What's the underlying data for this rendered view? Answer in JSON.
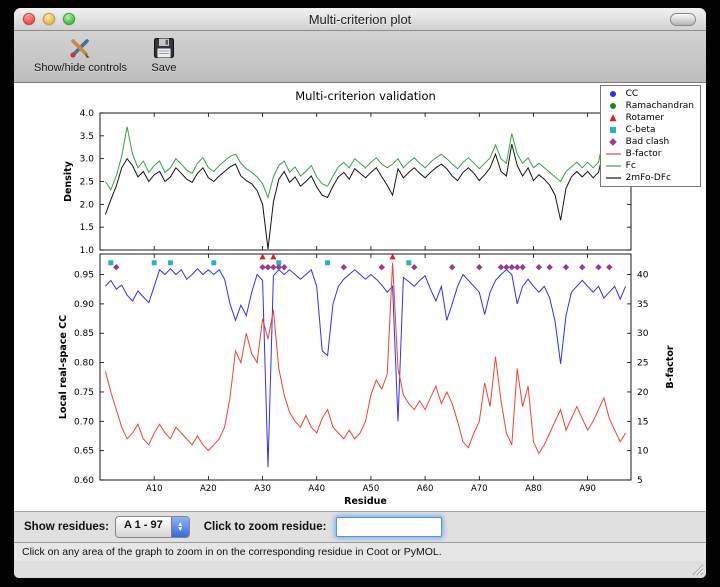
{
  "window": {
    "title": "Multi-criterion plot"
  },
  "toolbar": {
    "items": [
      {
        "label": "Show/hide controls"
      },
      {
        "label": "Save"
      }
    ]
  },
  "controls": {
    "show_residues_label": "Show residues:",
    "residue_range_value": "A  1 - 97",
    "zoom_label": "Click to zoom residue:",
    "zoom_input_value": ""
  },
  "status": {
    "text": "Click on any area of the graph to zoom in on the corresponding residue in Coot or PyMOL."
  },
  "chart_data": {
    "type": "line",
    "title": "Multi-criterion validation",
    "x_range": [
      1,
      97
    ],
    "top": {
      "ylabel": "Density",
      "ylim": [
        1.0,
        4.0
      ],
      "yticks": [
        1.0,
        1.5,
        2.0,
        2.5,
        3.0,
        3.5,
        4.0
      ],
      "series": [
        {
          "name": "Fc",
          "color": "#3aa04a",
          "values": [
            2.5,
            2.32,
            2.62,
            3.05,
            3.7,
            3.1,
            2.8,
            2.95,
            2.7,
            2.85,
            2.95,
            2.7,
            2.8,
            3.0,
            2.88,
            2.75,
            2.68,
            2.9,
            3.02,
            2.8,
            2.72,
            2.85,
            2.95,
            3.05,
            3.1,
            2.9,
            2.78,
            2.7,
            2.6,
            2.45,
            2.15,
            2.6,
            2.85,
            2.95,
            2.7,
            2.82,
            2.62,
            2.72,
            2.85,
            2.6,
            2.45,
            2.4,
            2.62,
            2.82,
            2.92,
            2.8,
            3.0,
            2.9,
            2.8,
            2.92,
            3.02,
            2.88,
            2.8,
            2.88,
            3.0,
            2.8,
            2.92,
            3.02,
            2.9,
            2.8,
            2.92,
            3.02,
            3.1,
            3.0,
            2.88,
            2.78,
            2.92,
            3.02,
            2.9,
            2.78,
            2.9,
            3.02,
            3.3,
            3.0,
            2.9,
            3.55,
            3.1,
            2.9,
            3.02,
            2.8,
            2.9,
            2.8,
            2.7,
            2.6,
            2.5,
            2.72,
            2.82,
            2.92,
            2.8,
            2.92,
            2.8,
            2.92,
            3.5,
            3.02,
            2.9,
            3.05,
            3.2
          ]
        },
        {
          "name": "2mFo-DFc",
          "color": "#141414",
          "values": [
            1.78,
            2.1,
            2.4,
            2.8,
            3.0,
            2.85,
            2.6,
            2.72,
            2.5,
            2.65,
            2.72,
            2.5,
            2.6,
            2.8,
            2.68,
            2.55,
            2.48,
            2.68,
            2.8,
            2.58,
            2.5,
            2.62,
            2.72,
            2.82,
            2.88,
            2.62,
            2.52,
            2.45,
            2.3,
            2.0,
            1.02,
            2.05,
            2.55,
            2.72,
            2.48,
            2.6,
            2.4,
            2.5,
            2.62,
            2.38,
            2.2,
            2.15,
            2.4,
            2.6,
            2.7,
            2.55,
            2.78,
            2.68,
            2.58,
            2.7,
            2.8,
            2.6,
            2.42,
            2.2,
            2.78,
            2.58,
            2.7,
            2.8,
            2.68,
            2.58,
            2.7,
            2.8,
            2.88,
            2.78,
            2.62,
            2.52,
            2.7,
            2.8,
            2.68,
            2.52,
            2.65,
            2.8,
            3.1,
            2.72,
            2.62,
            3.32,
            2.85,
            2.62,
            2.8,
            2.52,
            2.65,
            2.55,
            2.42,
            2.2,
            1.65,
            2.35,
            2.6,
            2.72,
            2.6,
            2.72,
            2.58,
            2.7,
            3.2,
            2.8,
            2.68,
            2.88,
            3.0
          ]
        }
      ]
    },
    "bottom": {
      "xlabel": "Residue",
      "ylabel_left": "Local real-space CC",
      "ylabel_right": "B-factor",
      "ylim_left": [
        0.6,
        0.985
      ],
      "yticks_left": [
        0.6,
        0.65,
        0.7,
        0.75,
        0.8,
        0.85,
        0.9,
        0.95
      ],
      "ylim_right": [
        5,
        43.5
      ],
      "yticks_right": [
        5,
        10,
        15,
        20,
        25,
        30,
        35,
        40
      ],
      "xticks": [
        10,
        20,
        30,
        40,
        50,
        60,
        70,
        80,
        90
      ],
      "xtick_labels": [
        "A10",
        "A20",
        "A30",
        "A40",
        "A50",
        "A60",
        "A70",
        "A80",
        "A90"
      ],
      "series": [
        {
          "name": "CC",
          "axis": "left",
          "color": "#3232e6",
          "values": [
            0.93,
            0.94,
            0.925,
            0.932,
            0.915,
            0.905,
            0.922,
            0.912,
            0.902,
            0.93,
            0.958,
            0.95,
            0.96,
            0.95,
            0.958,
            0.942,
            0.95,
            0.96,
            0.95,
            0.958,
            0.95,
            0.958,
            0.942,
            0.9,
            0.872,
            0.898,
            0.88,
            0.92,
            0.95,
            0.94,
            0.622,
            0.948,
            0.958,
            0.95,
            0.958,
            0.95,
            0.942,
            0.95,
            0.958,
            0.93,
            0.82,
            0.812,
            0.9,
            0.93,
            0.942,
            0.95,
            0.958,
            0.95,
            0.942,
            0.95,
            0.942,
            0.932,
            0.92,
            0.93,
            0.7,
            0.945,
            0.938,
            0.93,
            0.94,
            0.948,
            0.925,
            0.905,
            0.93,
            0.872,
            0.9,
            0.93,
            0.95,
            0.94,
            0.93,
            0.92,
            0.882,
            0.92,
            0.94,
            0.95,
            0.958,
            0.95,
            0.9,
            0.93,
            0.942,
            0.93,
            0.92,
            0.93,
            0.91,
            0.87,
            0.798,
            0.88,
            0.92,
            0.93,
            0.94,
            0.93,
            0.92,
            0.93,
            0.91,
            0.92,
            0.93,
            0.908,
            0.93
          ]
        },
        {
          "name": "B-factor",
          "axis": "right",
          "color": "#ee4433",
          "values": [
            23.5,
            20,
            17,
            14,
            12,
            13,
            14.5,
            12,
            11,
            13,
            14.5,
            13,
            12,
            14,
            13,
            12,
            11,
            12.5,
            11,
            10,
            11,
            12,
            14,
            19,
            27,
            25,
            30,
            26.5,
            25,
            32.5,
            29,
            34,
            24,
            19.5,
            16.5,
            15,
            14,
            16,
            14,
            13,
            15.5,
            17,
            14,
            13,
            12,
            13.5,
            12,
            13,
            15,
            19.5,
            22,
            20.5,
            23,
            42,
            24,
            19.5,
            18,
            17,
            18.5,
            17,
            19,
            21,
            18,
            20,
            18,
            15,
            11.5,
            10.5,
            13,
            15,
            21.5,
            17.5,
            26,
            18.5,
            13,
            11,
            24,
            17.5,
            21,
            11.5,
            9.5,
            11,
            13,
            15,
            17,
            13.5,
            15.5,
            17.5,
            15.5,
            13.5,
            15,
            17,
            19,
            15.5,
            13.5,
            11.5,
            13
          ]
        }
      ],
      "markers": [
        {
          "name": "Rotamer",
          "shape": "triangle",
          "color": "#c8281e",
          "y": 0.98,
          "residues": [
            30,
            32,
            54
          ]
        },
        {
          "name": "C-beta",
          "shape": "square",
          "color": "#28b4b4",
          "y": 0.97,
          "residues": [
            2,
            10,
            13,
            21,
            33,
            42,
            57
          ]
        },
        {
          "name": "Bad clash",
          "shape": "diamond",
          "color": "#963c96",
          "y": 0.9625,
          "residues": [
            3,
            30,
            31,
            32,
            33,
            34,
            45,
            52,
            58,
            65,
            70,
            74,
            75,
            76,
            77,
            78,
            81,
            83,
            86,
            89,
            92,
            94
          ]
        }
      ]
    },
    "legend": [
      {
        "label": "CC",
        "shape": "circle",
        "color": "#3232e6"
      },
      {
        "label": "Ramachandran",
        "shape": "circle",
        "color": "#1e8c1e"
      },
      {
        "label": "Rotamer",
        "shape": "triangle",
        "color": "#c8281e"
      },
      {
        "label": "C-beta",
        "shape": "square",
        "color": "#28b4b4"
      },
      {
        "label": "Bad clash",
        "shape": "diamond",
        "color": "#963c96"
      },
      {
        "label": "B-factor",
        "shape": "line",
        "color": "#ee4433"
      },
      {
        "label": "Fc",
        "shape": "line",
        "color": "#3aa04a"
      },
      {
        "label": "2mFo-DFc",
        "shape": "line",
        "color": "#141414"
      }
    ]
  }
}
